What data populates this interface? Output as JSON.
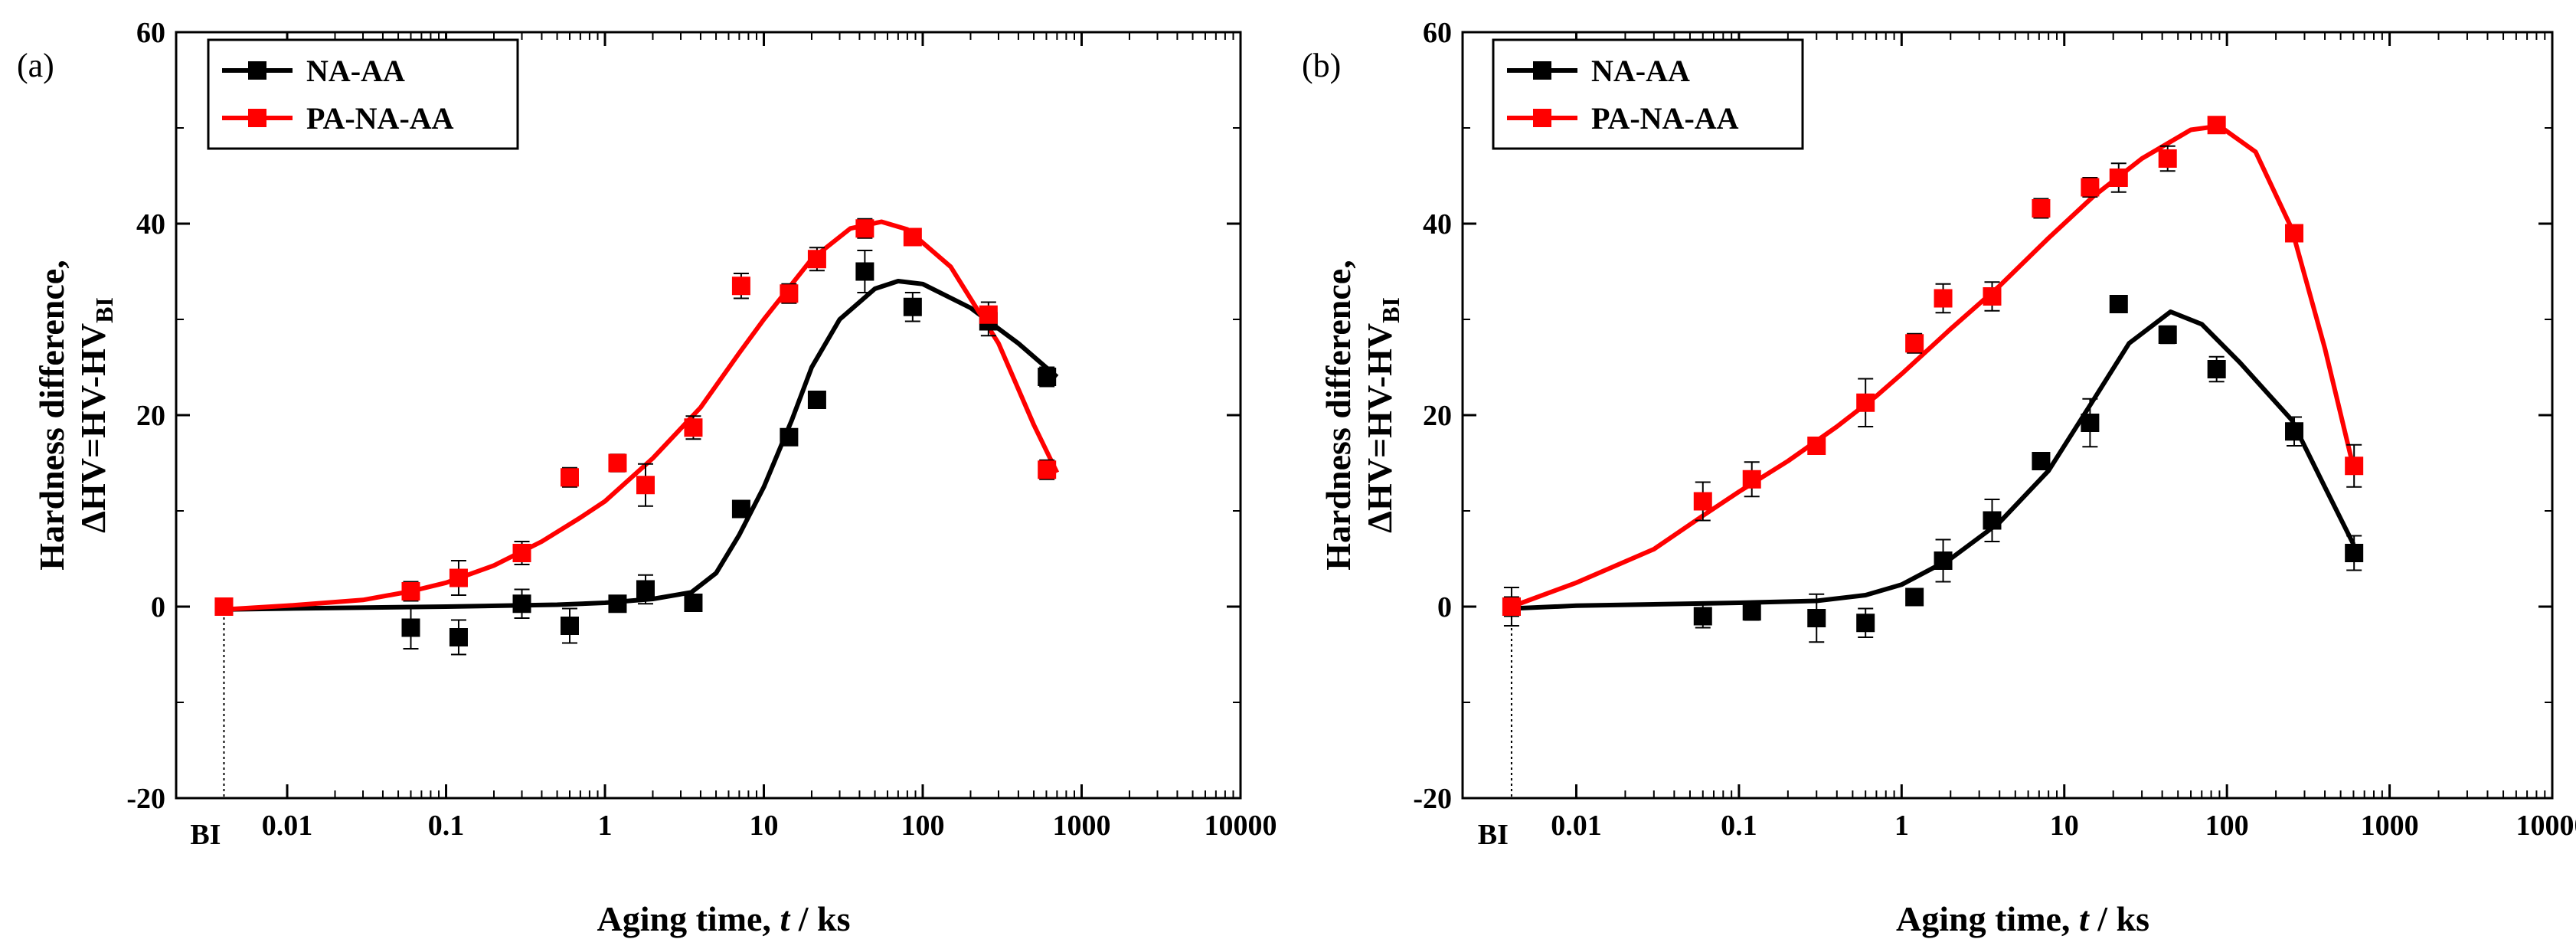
{
  "chart_data": [
    {
      "type": "scatter",
      "panel_label": "(a)",
      "xlabel_parts": [
        "Aging time, ",
        "t",
        " / ks"
      ],
      "ylabel_line1": "Hardness difference,",
      "ylabel_line2_parts": [
        "ΔHV=HV-HV",
        "BI"
      ],
      "x_scale": "log",
      "xlim": [
        0.002,
        10000
      ],
      "ylim": [
        -20,
        60
      ],
      "yticks": [
        -20,
        0,
        20,
        40,
        60
      ],
      "xticks": [
        {
          "value": 0.004,
          "label": "BI"
        },
        {
          "value": 0.01,
          "label": "0.01"
        },
        {
          "value": 0.1,
          "label": "0.1"
        },
        {
          "value": 1,
          "label": "1"
        },
        {
          "value": 10,
          "label": "10"
        },
        {
          "value": 100,
          "label": "100"
        },
        {
          "value": 1000,
          "label": "1000"
        },
        {
          "value": 10000,
          "label": "10000"
        }
      ],
      "bi_x": 0.004,
      "legend_position": "top-left",
      "series": [
        {
          "name": "NA-AA",
          "color": "#000000",
          "points": [
            {
              "x": 0.004,
              "y": 0,
              "err": 0.8
            },
            {
              "x": 0.06,
              "y": -2.2,
              "err": 2.2
            },
            {
              "x": 0.12,
              "y": -3.2,
              "err": 1.8
            },
            {
              "x": 0.3,
              "y": 0.3,
              "err": 1.5
            },
            {
              "x": 0.6,
              "y": -2,
              "err": 1.8
            },
            {
              "x": 1.2,
              "y": 0.3,
              "err": 0.5
            },
            {
              "x": 1.8,
              "y": 1.8,
              "err": 1.5
            },
            {
              "x": 3.6,
              "y": 0.4,
              "err": 0.6
            },
            {
              "x": 7.2,
              "y": 10.2,
              "err": 0.8
            },
            {
              "x": 14.4,
              "y": 17.7,
              "err": 0.8
            },
            {
              "x": 21.6,
              "y": 21.6,
              "err": 0.8
            },
            {
              "x": 43.2,
              "y": 35,
              "err": 2.2
            },
            {
              "x": 86.4,
              "y": 31.3,
              "err": 1.5
            },
            {
              "x": 259.2,
              "y": 29.8,
              "err": 1.5
            },
            {
              "x": 604.8,
              "y": 24,
              "err": 1.0
            }
          ],
          "fit": [
            {
              "x": 0.004,
              "y": -0.3
            },
            {
              "x": 0.01,
              "y": -0.2
            },
            {
              "x": 0.1,
              "y": 0.0
            },
            {
              "x": 0.5,
              "y": 0.2
            },
            {
              "x": 1,
              "y": 0.4
            },
            {
              "x": 2,
              "y": 0.8
            },
            {
              "x": 3.5,
              "y": 1.5
            },
            {
              "x": 5,
              "y": 3.5
            },
            {
              "x": 7,
              "y": 7.5
            },
            {
              "x": 10,
              "y": 12.5
            },
            {
              "x": 15,
              "y": 19.5
            },
            {
              "x": 20,
              "y": 25
            },
            {
              "x": 30,
              "y": 30
            },
            {
              "x": 50,
              "y": 33.2
            },
            {
              "x": 70,
              "y": 34
            },
            {
              "x": 100,
              "y": 33.7
            },
            {
              "x": 200,
              "y": 31.2
            },
            {
              "x": 400,
              "y": 27.5
            },
            {
              "x": 700,
              "y": 24
            }
          ]
        },
        {
          "name": "PA-NA-AA",
          "color": "#ff0000",
          "points": [
            {
              "x": 0.004,
              "y": 0,
              "err": 0.5
            },
            {
              "x": 0.06,
              "y": 1.6,
              "err": 1.0
            },
            {
              "x": 0.12,
              "y": 3,
              "err": 1.8
            },
            {
              "x": 0.3,
              "y": 5.6,
              "err": 1.2
            },
            {
              "x": 0.6,
              "y": 13.5,
              "err": 1.0
            },
            {
              "x": 1.2,
              "y": 15,
              "err": 0.9
            },
            {
              "x": 1.8,
              "y": 12.7,
              "err": 2.2
            },
            {
              "x": 3.6,
              "y": 18.7,
              "err": 1.2
            },
            {
              "x": 7.2,
              "y": 33.5,
              "err": 1.3
            },
            {
              "x": 14.4,
              "y": 32.7,
              "err": 1.0
            },
            {
              "x": 21.6,
              "y": 36.3,
              "err": 1.2
            },
            {
              "x": 43.2,
              "y": 39.5,
              "err": 1.0
            },
            {
              "x": 86.4,
              "y": 38.6,
              "err": 0.8
            },
            {
              "x": 259.2,
              "y": 30.5,
              "err": 1.3
            },
            {
              "x": 604.8,
              "y": 14.3,
              "err": 1.0
            }
          ],
          "fit": [
            {
              "x": 0.004,
              "y": -0.3
            },
            {
              "x": 0.01,
              "y": 0.1
            },
            {
              "x": 0.03,
              "y": 0.7
            },
            {
              "x": 0.06,
              "y": 1.6
            },
            {
              "x": 0.1,
              "y": 2.5
            },
            {
              "x": 0.2,
              "y": 4.3
            },
            {
              "x": 0.4,
              "y": 6.8
            },
            {
              "x": 0.7,
              "y": 9.3
            },
            {
              "x": 1,
              "y": 11
            },
            {
              "x": 2,
              "y": 15.5
            },
            {
              "x": 4,
              "y": 20.8
            },
            {
              "x": 7,
              "y": 26.5
            },
            {
              "x": 10,
              "y": 30
            },
            {
              "x": 20,
              "y": 36.3
            },
            {
              "x": 35,
              "y": 39.5
            },
            {
              "x": 55,
              "y": 40.2
            },
            {
              "x": 80,
              "y": 39.4
            },
            {
              "x": 150,
              "y": 35.5
            },
            {
              "x": 300,
              "y": 27.5
            },
            {
              "x": 500,
              "y": 19
            },
            {
              "x": 700,
              "y": 14
            }
          ]
        }
      ]
    },
    {
      "type": "scatter",
      "panel_label": "(b)",
      "xlabel_parts": [
        "Aging time, ",
        "t",
        " / ks"
      ],
      "ylabel_line1": "Hardness difference,",
      "ylabel_line2_parts": [
        "ΔHV=HV-HV",
        "BI"
      ],
      "x_scale": "log",
      "xlim": [
        0.002,
        10000
      ],
      "ylim": [
        -20,
        60
      ],
      "yticks": [
        -20,
        0,
        20,
        40,
        60
      ],
      "xticks": [
        {
          "value": 0.004,
          "label": "BI"
        },
        {
          "value": 0.01,
          "label": "0.01"
        },
        {
          "value": 0.1,
          "label": "0.1"
        },
        {
          "value": 1,
          "label": "1"
        },
        {
          "value": 10,
          "label": "10"
        },
        {
          "value": 100,
          "label": "100"
        },
        {
          "value": 1000,
          "label": "1000"
        },
        {
          "value": 10000,
          "label": "10000"
        }
      ],
      "bi_x": 0.004,
      "legend_position": "top-left",
      "series": [
        {
          "name": "NA-AA",
          "color": "#000000",
          "points": [
            {
              "x": 0.004,
              "y": 0,
              "err": 2.0
            },
            {
              "x": 0.06,
              "y": -1,
              "err": 1.2
            },
            {
              "x": 0.12,
              "y": -0.5,
              "err": 0.9
            },
            {
              "x": 0.3,
              "y": -1.2,
              "err": 2.5
            },
            {
              "x": 0.6,
              "y": -1.7,
              "err": 1.5
            },
            {
              "x": 1.2,
              "y": 1,
              "err": 0.5
            },
            {
              "x": 1.8,
              "y": 4.8,
              "err": 2.2
            },
            {
              "x": 3.6,
              "y": 9,
              "err": 2.2
            },
            {
              "x": 7.2,
              "y": 15.2,
              "err": 0.6
            },
            {
              "x": 14.4,
              "y": 19.2,
              "err": 2.5
            },
            {
              "x": 21.6,
              "y": 31.6,
              "err": 0.6
            },
            {
              "x": 43.2,
              "y": 28.4,
              "err": 0.9
            },
            {
              "x": 86.4,
              "y": 24.8,
              "err": 1.3
            },
            {
              "x": 259.2,
              "y": 18.3,
              "err": 1.5
            },
            {
              "x": 604.8,
              "y": 5.6,
              "err": 1.8
            }
          ],
          "fit": [
            {
              "x": 0.004,
              "y": -0.2
            },
            {
              "x": 0.01,
              "y": 0.1
            },
            {
              "x": 0.1,
              "y": 0.4
            },
            {
              "x": 0.3,
              "y": 0.6
            },
            {
              "x": 0.6,
              "y": 1.2
            },
            {
              "x": 1,
              "y": 2.3
            },
            {
              "x": 2,
              "y": 5
            },
            {
              "x": 4,
              "y": 8.8
            },
            {
              "x": 8,
              "y": 14.2
            },
            {
              "x": 15,
              "y": 21.5
            },
            {
              "x": 25,
              "y": 27.5
            },
            {
              "x": 45,
              "y": 30.8
            },
            {
              "x": 70,
              "y": 29.5
            },
            {
              "x": 120,
              "y": 25.5
            },
            {
              "x": 250,
              "y": 19.5
            },
            {
              "x": 400,
              "y": 12.5
            },
            {
              "x": 600,
              "y": 6.5
            }
          ]
        },
        {
          "name": "PA-NA-AA",
          "color": "#ff0000",
          "points": [
            {
              "x": 0.004,
              "y": 0,
              "err": 1.0
            },
            {
              "x": 0.06,
              "y": 11,
              "err": 2.0
            },
            {
              "x": 0.12,
              "y": 13.3,
              "err": 1.8
            },
            {
              "x": 0.3,
              "y": 16.8,
              "err": 0.5
            },
            {
              "x": 0.6,
              "y": 21.3,
              "err": 2.5
            },
            {
              "x": 1.2,
              "y": 27.5,
              "err": 1.0
            },
            {
              "x": 1.8,
              "y": 32.2,
              "err": 1.5
            },
            {
              "x": 3.6,
              "y": 32.4,
              "err": 1.5
            },
            {
              "x": 7.2,
              "y": 41.6,
              "err": 1.0
            },
            {
              "x": 14.4,
              "y": 43.8,
              "err": 1.0
            },
            {
              "x": 21.6,
              "y": 44.8,
              "err": 1.5
            },
            {
              "x": 43.2,
              "y": 46.8,
              "err": 1.3
            },
            {
              "x": 86.4,
              "y": 50.3,
              "err": 0.6
            },
            {
              "x": 259.2,
              "y": 39,
              "err": 0.6
            },
            {
              "x": 604.8,
              "y": 14.7,
              "err": 2.2
            }
          ],
          "fit": [
            {
              "x": 0.004,
              "y": 0
            },
            {
              "x": 0.01,
              "y": 2.5
            },
            {
              "x": 0.03,
              "y": 6
            },
            {
              "x": 0.06,
              "y": 9.5
            },
            {
              "x": 0.1,
              "y": 12
            },
            {
              "x": 0.2,
              "y": 15.2
            },
            {
              "x": 0.4,
              "y": 18.8
            },
            {
              "x": 0.7,
              "y": 22
            },
            {
              "x": 1,
              "y": 24.3
            },
            {
              "x": 2,
              "y": 29
            },
            {
              "x": 4,
              "y": 33.5
            },
            {
              "x": 8,
              "y": 38.5
            },
            {
              "x": 15,
              "y": 42.8
            },
            {
              "x": 30,
              "y": 46.8
            },
            {
              "x": 60,
              "y": 49.8
            },
            {
              "x": 90,
              "y": 50.2
            },
            {
              "x": 150,
              "y": 47.5
            },
            {
              "x": 250,
              "y": 39.5
            },
            {
              "x": 400,
              "y": 27
            },
            {
              "x": 600,
              "y": 14.5
            }
          ]
        }
      ]
    }
  ]
}
